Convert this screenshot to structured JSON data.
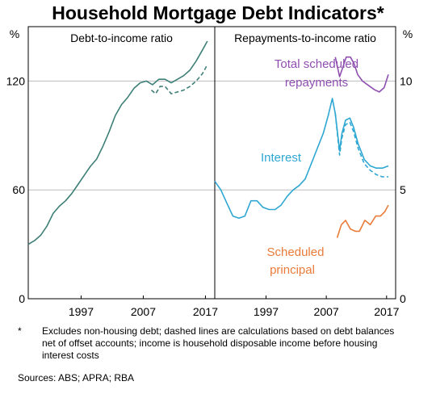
{
  "title": "Household Mortgage Debt Indicators*",
  "footnote": {
    "marker": "*",
    "text": "Excludes non-housing debt; dashed lines are calculations based on debt balances net of offset accounts; income is household disposable income before housing interest costs"
  },
  "sources": "Sources:   ABS; APRA; RBA",
  "colors": {
    "debt": "#3e7f78",
    "total": "#8f4fb0",
    "interest": "#2ea7d3",
    "principal": "#ea7b39",
    "grid": "#bdbdbd"
  },
  "chart_data": [
    {
      "type": "line",
      "title": "Debt-to-income ratio",
      "unit_label": "%",
      "ylim": [
        0,
        150
      ],
      "yticks": [
        0,
        60,
        120
      ],
      "xlim": [
        1988.5,
        2018.5
      ],
      "xticks": [
        1997,
        2007,
        2017
      ],
      "grid": true,
      "series": [
        {
          "key": "debt",
          "style": "solid",
          "x": [
            1988.5,
            1989.5,
            1990.5,
            1991.5,
            1992.5,
            1993.5,
            1994.5,
            1995.5,
            1996.5,
            1997.5,
            1998.5,
            1999.5,
            2000.5,
            2001.5,
            2002.5,
            2003.5,
            2004.5,
            2005.5,
            2006.5,
            2007.5,
            2008.5,
            2009.5,
            2010.5,
            2011.5,
            2012.5,
            2013.5,
            2014.5,
            2015.5,
            2016.5,
            2017.3
          ],
          "y": [
            30,
            32,
            35,
            40,
            47,
            51,
            54,
            58,
            63,
            68,
            73,
            77,
            84,
            92,
            101,
            107,
            111,
            116,
            119,
            120,
            118,
            121,
            121,
            119,
            121,
            123,
            126,
            131,
            137,
            142
          ]
        },
        {
          "key": "debt",
          "style": "dashed",
          "x": [
            2008.3,
            2009.0,
            2009.7,
            2010.5,
            2011.5,
            2012.5,
            2013.5,
            2014.5,
            2015.5,
            2016.5,
            2017.3
          ],
          "y": [
            115,
            113,
            117,
            117,
            113,
            114,
            115,
            117,
            120,
            124,
            129
          ]
        }
      ]
    },
    {
      "type": "line",
      "title": "Repayments-to-income ratio",
      "unit_label": "%",
      "ylim": [
        0,
        12.5
      ],
      "yticks": [
        0,
        5,
        10
      ],
      "xlim": [
        1988.5,
        2018.5
      ],
      "xticks": [
        1997,
        2007,
        2017
      ],
      "grid": true,
      "series": [
        {
          "name": "Total scheduled repayments",
          "key": "total",
          "style": "solid",
          "x": [
            2008.5,
            2009.2,
            2009.7,
            2010.3,
            2011.0,
            2011.6,
            2012.2,
            2013.0,
            2014.0,
            2015.0,
            2015.8,
            2016.6,
            2017.3
          ],
          "y": [
            11.1,
            10.2,
            10.6,
            11.1,
            11.1,
            10.8,
            10.3,
            10.0,
            9.8,
            9.6,
            9.5,
            9.7,
            10.3
          ]
        },
        {
          "name": "Interest",
          "key": "interest",
          "style": "solid",
          "x": [
            1988.5,
            1989.5,
            1990.5,
            1991.5,
            1992.5,
            1993.5,
            1994.5,
            1995.5,
            1996.5,
            1997.5,
            1998.5,
            1999.5,
            2000.5,
            2001.5,
            2002.5,
            2003.5,
            2004.5,
            2005.5,
            2006.5,
            2007.3,
            2008.0,
            2008.5,
            2009.2,
            2009.6,
            2010.2,
            2010.9,
            2011.5,
            2012.3,
            2013.3,
            2014.3,
            2015.3,
            2016.3,
            2017.3
          ],
          "y": [
            5.4,
            5.0,
            4.4,
            3.8,
            3.7,
            3.8,
            4.5,
            4.5,
            4.2,
            4.1,
            4.1,
            4.3,
            4.7,
            5.0,
            5.2,
            5.5,
            6.2,
            6.9,
            7.6,
            8.4,
            9.2,
            8.5,
            6.8,
            7.6,
            8.2,
            8.3,
            7.9,
            7.1,
            6.4,
            6.1,
            6.0,
            6.0,
            6.1
          ]
        },
        {
          "name": "Interest",
          "key": "interest",
          "style": "dashed",
          "x": [
            2008.5,
            2009.2,
            2009.6,
            2010.2,
            2010.9,
            2011.5,
            2012.3,
            2013.3,
            2014.3,
            2015.3,
            2016.3,
            2017.3
          ],
          "y": [
            8.5,
            6.6,
            7.4,
            8.0,
            8.1,
            7.7,
            6.9,
            6.2,
            5.9,
            5.7,
            5.6,
            5.6
          ]
        },
        {
          "name": "Scheduled principal",
          "key": "principal",
          "style": "solid",
          "x": [
            2008.8,
            2009.5,
            2010.2,
            2011.0,
            2011.8,
            2012.5,
            2013.4,
            2014.3,
            2015.2,
            2016.0,
            2016.7,
            2017.3
          ],
          "y": [
            2.8,
            3.4,
            3.6,
            3.2,
            3.1,
            3.1,
            3.6,
            3.4,
            3.8,
            3.8,
            4.0,
            4.3
          ]
        }
      ],
      "annotations": [
        {
          "text": "Total scheduled",
          "key": "total"
        },
        {
          "text": "repayments",
          "key": "total"
        },
        {
          "text": "Interest",
          "key": "interest"
        },
        {
          "text": "Scheduled",
          "key": "principal"
        },
        {
          "text": "principal",
          "key": "principal"
        }
      ]
    }
  ]
}
